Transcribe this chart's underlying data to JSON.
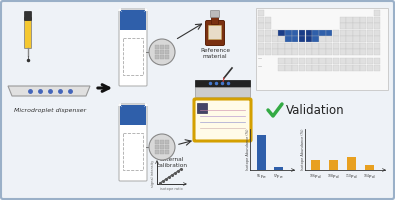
{
  "bg_color": "#eef2f7",
  "border_color": "#9ab0c8",
  "arrow_color": "#111111",
  "blue_rect_color": "#2f5faa",
  "check_color": "#33aa44",
  "validation_text": "Validation",
  "pt_highlight_blue": "#2f5faa",
  "pt_highlight_mid": "#4477cc",
  "bar1_color": "#2f5faa",
  "bar2_color": "#e8a020",
  "microdroplet_label": "Microdroplet dispenser",
  "reference_label": "Reference\nmaterial",
  "external_cal_label": "External\ncalibration",
  "fig_bg": "#eef2f7",
  "slide_white": "#ffffff",
  "slide_border": "#aaaaaa",
  "instrument_gold": "#d4a000",
  "instrument_fill": "#fffbe8"
}
